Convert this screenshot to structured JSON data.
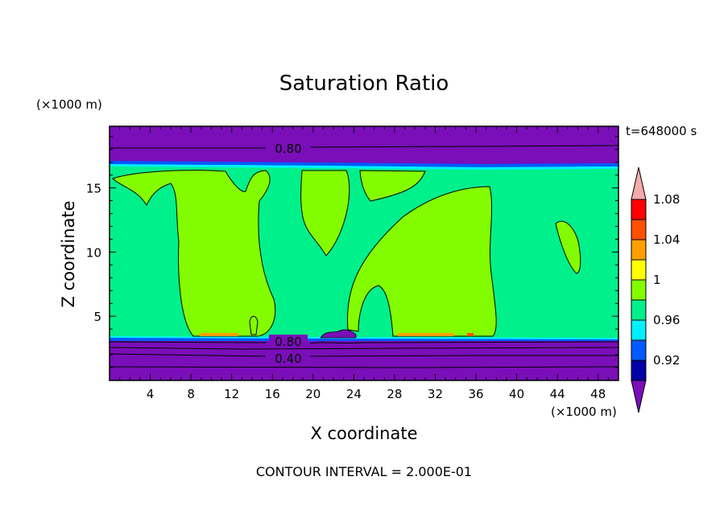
{
  "chart_data": {
    "type": "heatmap",
    "title": "Saturation Ratio",
    "xlabel": "X coordinate",
    "ylabel": "Z coordinate",
    "x_unit": "(×1000 m)",
    "y_unit": "(×1000 m)",
    "time_label": "t=648000 s",
    "footer": "CONTOUR INTERVAL = 2.000E-01",
    "xlim": [
      0,
      50
    ],
    "ylim": [
      0,
      19.8
    ],
    "x_ticks": [
      4,
      8,
      12,
      16,
      20,
      24,
      28,
      32,
      36,
      40,
      44,
      48
    ],
    "y_ticks": [
      5,
      10,
      15
    ],
    "contour_labels": [
      "0.80",
      "0.80",
      "0.40"
    ],
    "colorbar": {
      "labels": [
        "0.92",
        "0.96",
        "1",
        "1.04",
        "1.08"
      ],
      "bins": [
        {
          "color": "#7a0eb8"
        },
        {
          "color": "#0000a8"
        },
        {
          "color": "#005aff"
        },
        {
          "color": "#00f0ff"
        },
        {
          "color": "#00f08c"
        },
        {
          "color": "#84fc00"
        },
        {
          "color": "#ffff00"
        },
        {
          "color": "#ffa000"
        },
        {
          "color": "#ff5000"
        },
        {
          "color": "#ff0000"
        },
        {
          "color": "#f5aaaa"
        }
      ]
    },
    "colors": {
      "dry": "#7a0eb8",
      "moist": "#00f08c",
      "saturated": "#84fc00",
      "band_cyan": "#00f0ff",
      "band_blue": "#005aff"
    }
  }
}
